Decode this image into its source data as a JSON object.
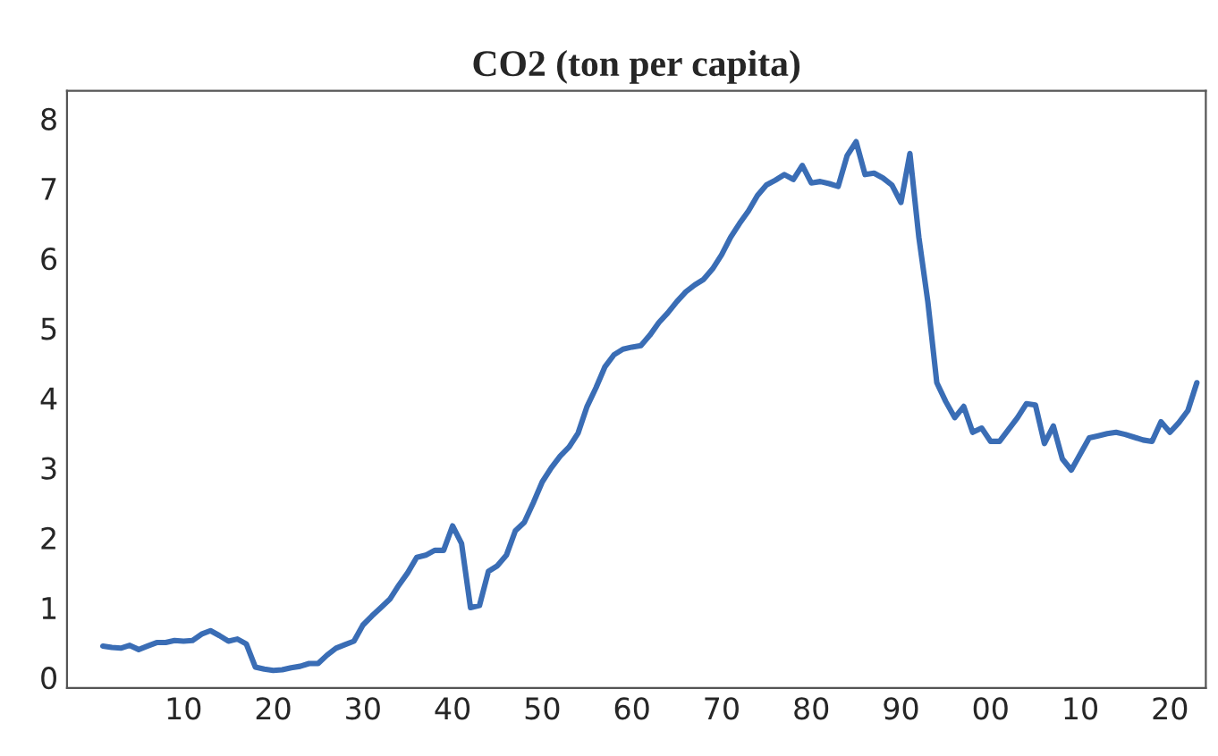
{
  "chart_data": {
    "type": "line",
    "title": "CO2 (ton per capita)",
    "x": [
      1901,
      1902,
      1903,
      1904,
      1905,
      1906,
      1907,
      1908,
      1909,
      1910,
      1911,
      1912,
      1913,
      1914,
      1915,
      1916,
      1917,
      1918,
      1919,
      1920,
      1921,
      1922,
      1923,
      1924,
      1925,
      1926,
      1927,
      1928,
      1929,
      1930,
      1931,
      1932,
      1933,
      1934,
      1935,
      1936,
      1937,
      1938,
      1939,
      1940,
      1941,
      1942,
      1943,
      1944,
      1945,
      1946,
      1947,
      1948,
      1949,
      1950,
      1951,
      1952,
      1953,
      1954,
      1955,
      1956,
      1957,
      1958,
      1959,
      1960,
      1961,
      1962,
      1963,
      1964,
      1965,
      1966,
      1967,
      1968,
      1969,
      1970,
      1971,
      1972,
      1973,
      1974,
      1975,
      1976,
      1977,
      1978,
      1979,
      1980,
      1981,
      1982,
      1983,
      1984,
      1985,
      1986,
      1987,
      1988,
      1989,
      1990,
      1991,
      1992,
      1993,
      1994,
      1995,
      1996,
      1997,
      1998,
      1999,
      2000,
      2001,
      2002,
      2003,
      2004,
      2005,
      2006,
      2007,
      2008,
      2009,
      2010,
      2011,
      2012,
      2013,
      2014,
      2015,
      2016,
      2017,
      2018,
      2019,
      2020,
      2021,
      2022,
      2023
    ],
    "series": [
      {
        "color": "#3a6db5",
        "values": [
          0.45,
          0.43,
          0.42,
          0.46,
          0.4,
          0.45,
          0.5,
          0.5,
          0.53,
          0.52,
          0.53,
          0.62,
          0.67,
          0.6,
          0.52,
          0.55,
          0.48,
          0.15,
          0.12,
          0.1,
          0.11,
          0.14,
          0.16,
          0.2,
          0.2,
          0.32,
          0.42,
          0.47,
          0.52,
          0.75,
          0.88,
          1.0,
          1.12,
          1.32,
          1.5,
          1.72,
          1.75,
          1.82,
          1.82,
          2.17,
          1.92,
          1.0,
          1.03,
          1.52,
          1.6,
          1.75,
          2.1,
          2.22,
          2.5,
          2.8,
          3.0,
          3.17,
          3.3,
          3.5,
          3.88,
          4.15,
          4.45,
          4.62,
          4.7,
          4.73,
          4.75,
          4.9,
          5.08,
          5.22,
          5.38,
          5.52,
          5.62,
          5.7,
          5.85,
          6.05,
          6.3,
          6.5,
          6.68,
          6.9,
          7.05,
          7.12,
          7.2,
          7.13,
          7.33,
          7.08,
          7.1,
          7.07,
          7.03,
          7.47,
          7.67,
          7.2,
          7.22,
          7.15,
          7.05,
          6.8,
          7.5,
          6.3,
          5.38,
          4.22,
          3.95,
          3.72,
          3.88,
          3.51,
          3.57,
          3.38,
          3.38,
          3.55,
          3.72,
          3.92,
          3.9,
          3.35,
          3.6,
          3.13,
          2.97,
          3.2,
          3.43,
          3.46,
          3.49,
          3.51,
          3.48,
          3.44,
          3.4,
          3.38,
          3.66,
          3.51,
          3.65,
          3.82,
          4.22
        ]
      }
    ],
    "xlim": [
      1897,
      2024
    ],
    "xticks": [
      {
        "value": 1910,
        "label": "10"
      },
      {
        "value": 1920,
        "label": "20"
      },
      {
        "value": 1930,
        "label": "30"
      },
      {
        "value": 1940,
        "label": "40"
      },
      {
        "value": 1950,
        "label": "50"
      },
      {
        "value": 1960,
        "label": "60"
      },
      {
        "value": 1970,
        "label": "70"
      },
      {
        "value": 1980,
        "label": "80"
      },
      {
        "value": 1990,
        "label": "90"
      },
      {
        "value": 2000,
        "label": "00"
      },
      {
        "value": 2010,
        "label": "10"
      },
      {
        "value": 2020,
        "label": "20"
      }
    ],
    "ylim": [
      -0.15,
      8.4
    ],
    "yticks": [
      0,
      1,
      2,
      3,
      4,
      5,
      6,
      7,
      8
    ],
    "grid": false
  }
}
